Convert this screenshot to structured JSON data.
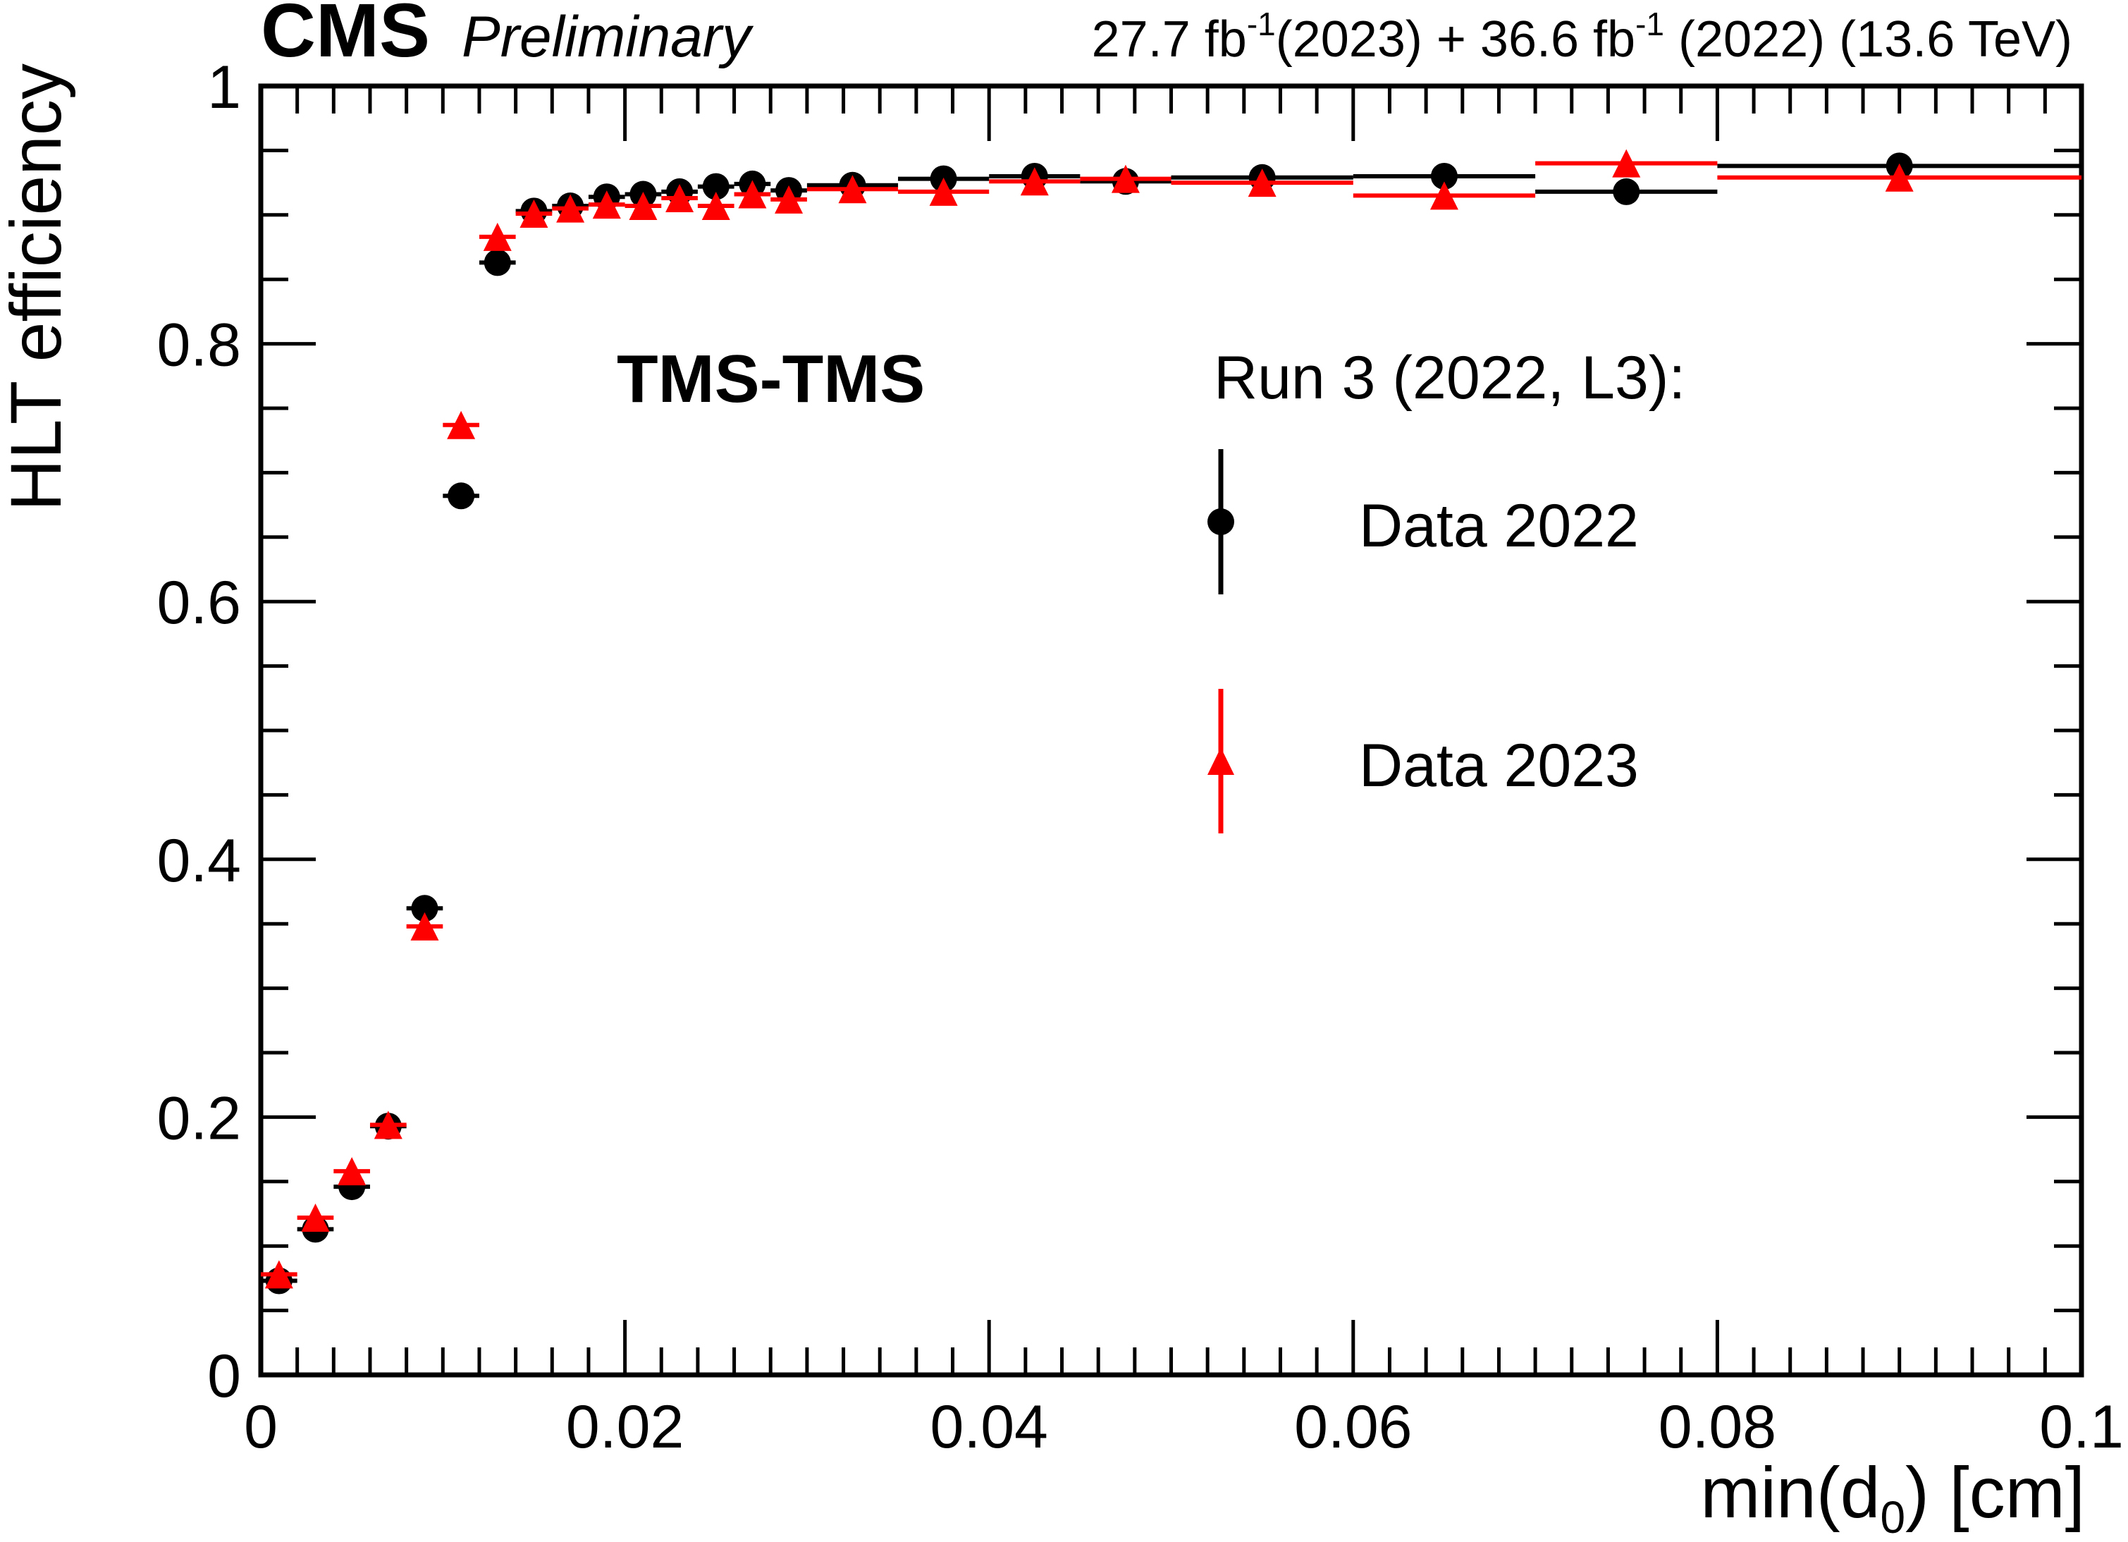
{
  "header": {
    "experiment": "CMS",
    "status": "Preliminary",
    "lumi_2023_value": "27.7 fb",
    "lumi_exponent_a": "-1",
    "lumi_2023_year": "(2023) + 36.6 fb",
    "lumi_exponent_b": "-1",
    "lumi_tail": " (2022) (13.6 TeV)"
  },
  "chart_data": {
    "type": "scatter",
    "xlabel_prefix": "min(d",
    "xlabel_sub": "0",
    "xlabel_suffix": ") [cm]",
    "ylabel": "HLT efficiency",
    "xlim": [
      0,
      0.1
    ],
    "ylim": [
      0,
      1
    ],
    "x_ticks": [
      0,
      0.02,
      0.04,
      0.06,
      0.08,
      0.1
    ],
    "x_tick_labels": [
      "0",
      "0.02",
      "0.04",
      "0.06",
      "0.08",
      "0.1"
    ],
    "y_ticks": [
      0,
      0.2,
      0.4,
      0.6,
      0.8,
      1
    ],
    "y_tick_labels": [
      "0",
      "0.2",
      "0.4",
      "0.6",
      "0.8",
      "1"
    ],
    "category_label": "TMS-TMS",
    "legend_header": "Run 3 (2022, L3):",
    "legend_position": "top-right",
    "grid": false,
    "series": [
      {
        "name": "Data 2022",
        "marker": "circle",
        "color": "#000000",
        "points": [
          {
            "x": 0.001,
            "xlo": 0.0,
            "xhi": 0.002,
            "y": 0.073
          },
          {
            "x": 0.003,
            "xlo": 0.002,
            "xhi": 0.004,
            "y": 0.113
          },
          {
            "x": 0.005,
            "xlo": 0.004,
            "xhi": 0.006,
            "y": 0.146
          },
          {
            "x": 0.007,
            "xlo": 0.006,
            "xhi": 0.008,
            "y": 0.193
          },
          {
            "x": 0.009,
            "xlo": 0.008,
            "xhi": 0.01,
            "y": 0.362
          },
          {
            "x": 0.011,
            "xlo": 0.01,
            "xhi": 0.012,
            "y": 0.682
          },
          {
            "x": 0.013,
            "xlo": 0.012,
            "xhi": 0.014,
            "y": 0.863
          },
          {
            "x": 0.015,
            "xlo": 0.014,
            "xhi": 0.016,
            "y": 0.903
          },
          {
            "x": 0.017,
            "xlo": 0.016,
            "xhi": 0.018,
            "y": 0.907
          },
          {
            "x": 0.019,
            "xlo": 0.018,
            "xhi": 0.02,
            "y": 0.914
          },
          {
            "x": 0.021,
            "xlo": 0.02,
            "xhi": 0.022,
            "y": 0.916
          },
          {
            "x": 0.023,
            "xlo": 0.022,
            "xhi": 0.024,
            "y": 0.918
          },
          {
            "x": 0.025,
            "xlo": 0.024,
            "xhi": 0.026,
            "y": 0.922
          },
          {
            "x": 0.027,
            "xlo": 0.026,
            "xhi": 0.028,
            "y": 0.924
          },
          {
            "x": 0.029,
            "xlo": 0.028,
            "xhi": 0.03,
            "y": 0.919
          },
          {
            "x": 0.0325,
            "xlo": 0.03,
            "xhi": 0.035,
            "y": 0.923
          },
          {
            "x": 0.0375,
            "xlo": 0.035,
            "xhi": 0.04,
            "y": 0.928
          },
          {
            "x": 0.0425,
            "xlo": 0.04,
            "xhi": 0.045,
            "y": 0.93
          },
          {
            "x": 0.0475,
            "xlo": 0.045,
            "xhi": 0.05,
            "y": 0.926
          },
          {
            "x": 0.055,
            "xlo": 0.05,
            "xhi": 0.06,
            "y": 0.929
          },
          {
            "x": 0.065,
            "xlo": 0.06,
            "xhi": 0.07,
            "y": 0.93
          },
          {
            "x": 0.075,
            "xlo": 0.07,
            "xhi": 0.08,
            "y": 0.918
          },
          {
            "x": 0.09,
            "xlo": 0.08,
            "xhi": 0.1,
            "y": 0.938
          }
        ]
      },
      {
        "name": "Data 2023",
        "marker": "triangle",
        "color": "#ff0000",
        "points": [
          {
            "x": 0.001,
            "xlo": 0.0,
            "xhi": 0.002,
            "y": 0.078
          },
          {
            "x": 0.003,
            "xlo": 0.002,
            "xhi": 0.004,
            "y": 0.122
          },
          {
            "x": 0.005,
            "xlo": 0.004,
            "xhi": 0.006,
            "y": 0.158
          },
          {
            "x": 0.007,
            "xlo": 0.006,
            "xhi": 0.008,
            "y": 0.194
          },
          {
            "x": 0.009,
            "xlo": 0.008,
            "xhi": 0.01,
            "y": 0.348
          },
          {
            "x": 0.011,
            "xlo": 0.01,
            "xhi": 0.012,
            "y": 0.737
          },
          {
            "x": 0.013,
            "xlo": 0.012,
            "xhi": 0.014,
            "y": 0.883
          },
          {
            "x": 0.015,
            "xlo": 0.014,
            "xhi": 0.016,
            "y": 0.901
          },
          {
            "x": 0.017,
            "xlo": 0.016,
            "xhi": 0.018,
            "y": 0.905
          },
          {
            "x": 0.019,
            "xlo": 0.018,
            "xhi": 0.02,
            "y": 0.908
          },
          {
            "x": 0.021,
            "xlo": 0.02,
            "xhi": 0.022,
            "y": 0.907
          },
          {
            "x": 0.023,
            "xlo": 0.022,
            "xhi": 0.024,
            "y": 0.913
          },
          {
            "x": 0.025,
            "xlo": 0.024,
            "xhi": 0.026,
            "y": 0.907
          },
          {
            "x": 0.027,
            "xlo": 0.026,
            "xhi": 0.028,
            "y": 0.916
          },
          {
            "x": 0.029,
            "xlo": 0.028,
            "xhi": 0.03,
            "y": 0.912
          },
          {
            "x": 0.0325,
            "xlo": 0.03,
            "xhi": 0.035,
            "y": 0.92
          },
          {
            "x": 0.0375,
            "xlo": 0.035,
            "xhi": 0.04,
            "y": 0.918
          },
          {
            "x": 0.0425,
            "xlo": 0.04,
            "xhi": 0.045,
            "y": 0.926
          },
          {
            "x": 0.0475,
            "xlo": 0.045,
            "xhi": 0.05,
            "y": 0.928
          },
          {
            "x": 0.055,
            "xlo": 0.05,
            "xhi": 0.06,
            "y": 0.925
          },
          {
            "x": 0.065,
            "xlo": 0.06,
            "xhi": 0.07,
            "y": 0.915
          },
          {
            "x": 0.075,
            "xlo": 0.07,
            "xhi": 0.08,
            "y": 0.94
          },
          {
            "x": 0.09,
            "xlo": 0.08,
            "xhi": 0.1,
            "y": 0.929
          }
        ]
      }
    ]
  }
}
